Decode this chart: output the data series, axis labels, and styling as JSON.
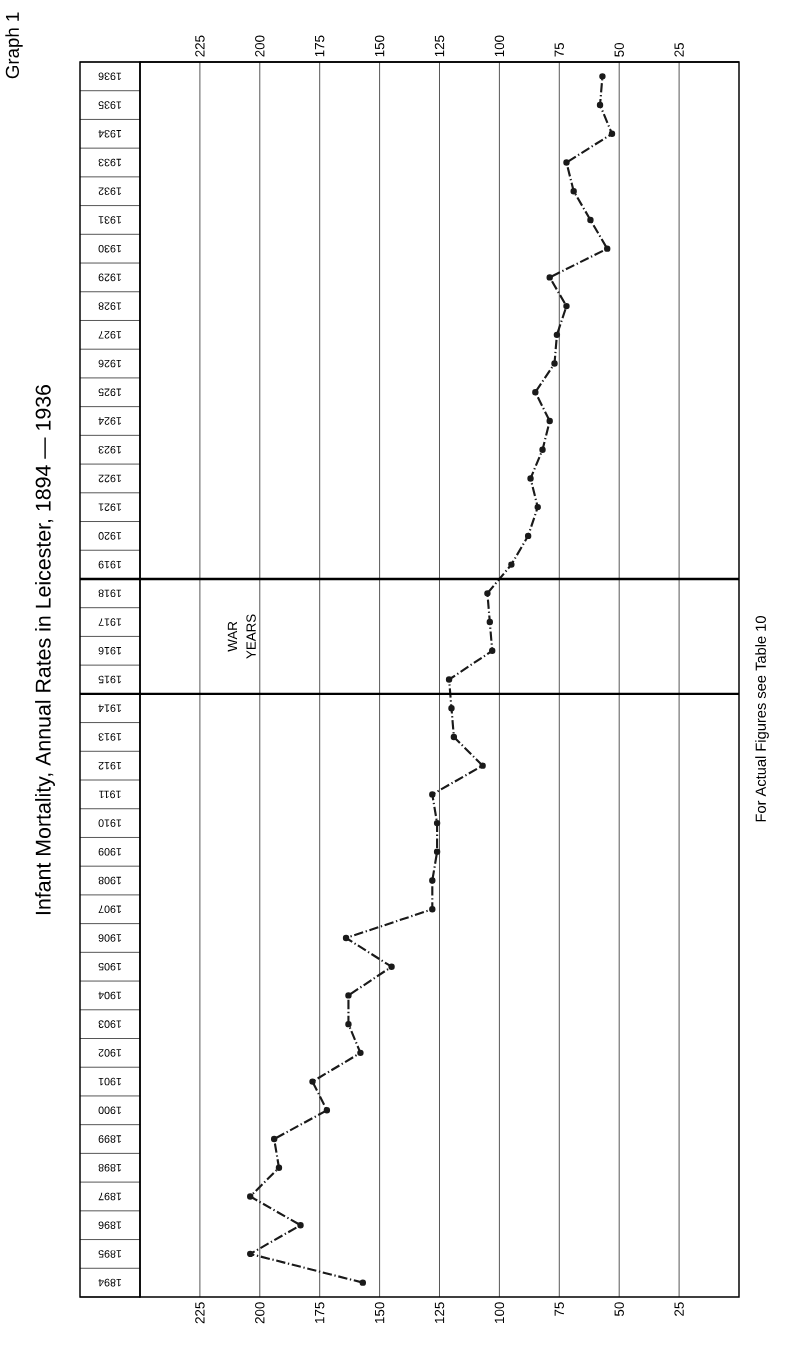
{
  "chart_data": {
    "type": "line",
    "orientation": "horizontal",
    "title": "Infant Mortality, Annual Rates in Leicester, 1894 — 1936",
    "annotations": [
      "Graph 1",
      "For Actual Figures see Table 10",
      "WAR YEARS"
    ],
    "x": [
      1894,
      1895,
      1896,
      1897,
      1898,
      1899,
      1900,
      1901,
      1902,
      1903,
      1904,
      1905,
      1906,
      1907,
      1908,
      1909,
      1910,
      1911,
      1912,
      1913,
      1914,
      1915,
      1916,
      1917,
      1918,
      1919,
      1920,
      1921,
      1922,
      1923,
      1924,
      1925,
      1926,
      1927,
      1928,
      1929,
      1930,
      1931,
      1932,
      1933,
      1934,
      1935,
      1936
    ],
    "series": [
      {
        "color": "#1a1a1a",
        "values": [
          157,
          204,
          183,
          204,
          192,
          194,
          172,
          178,
          158,
          163,
          163,
          145,
          164,
          128,
          128,
          126,
          126,
          128,
          107,
          119,
          120,
          121,
          103,
          104,
          105,
          95,
          88,
          84,
          87,
          82,
          79,
          85,
          77,
          76,
          72,
          79,
          55,
          62,
          69,
          72,
          53,
          58,
          57
        ]
      }
    ],
    "xlim": [
      250,
      0
    ],
    "xticks": [
      225,
      200,
      175,
      150,
      125,
      100,
      75,
      50,
      25
    ],
    "x2lim": [
      250,
      0
    ],
    "x2ticks": [
      225,
      200,
      175,
      150,
      125,
      100,
      75,
      50,
      25
    ],
    "ylim": [
      1893.5,
      1936.5
    ],
    "yticks": [
      1894,
      1895,
      1896,
      1897,
      1898,
      1899,
      1900,
      1901,
      1902,
      1903,
      1904,
      1905,
      1906,
      1907,
      1908,
      1909,
      1910,
      1911,
      1912,
      1913,
      1914,
      1915,
      1916,
      1917,
      1918,
      1919,
      1920,
      1921,
      1922,
      1923,
      1924,
      1925,
      1926,
      1927,
      1928,
      1929,
      1930,
      1931,
      1932,
      1933,
      1934,
      1935,
      1936
    ],
    "grid": true,
    "marker": "circle",
    "line_style": "dashed",
    "ref_lines": [
      {
        "axis": "y",
        "value": 1914.5
      },
      {
        "axis": "y",
        "value": 1918.5
      }
    ]
  }
}
